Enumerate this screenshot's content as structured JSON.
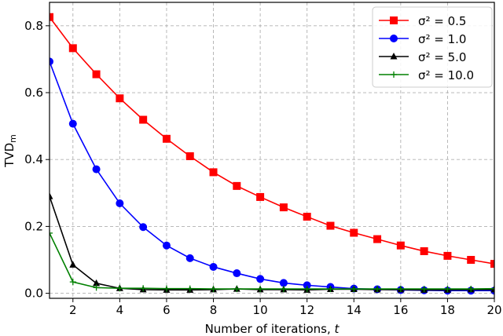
{
  "chart_data": {
    "type": "line",
    "title": "",
    "xlabel": "Number of iterations, t",
    "ylabel": "TVD_m",
    "xlim": [
      1,
      20
    ],
    "ylim": [
      -0.015,
      0.87
    ],
    "grid": true,
    "legend_position": "upper right",
    "x": [
      1,
      2,
      3,
      4,
      5,
      6,
      7,
      8,
      9,
      10,
      11,
      12,
      13,
      14,
      15,
      16,
      17,
      18,
      19,
      20
    ],
    "x_ticks": [
      2,
      4,
      6,
      8,
      10,
      12,
      14,
      16,
      18,
      20
    ],
    "y_ticks": [
      0.0,
      0.2,
      0.4,
      0.6,
      0.8
    ],
    "series": [
      {
        "name": "σ² = 0.5",
        "color": "#ff0000",
        "marker": "square",
        "values": [
          0.826,
          0.733,
          0.655,
          0.583,
          0.519,
          0.462,
          0.41,
          0.362,
          0.321,
          0.288,
          0.257,
          0.229,
          0.202,
          0.181,
          0.162,
          0.143,
          0.126,
          0.112,
          0.1,
          0.088
        ]
      },
      {
        "name": "σ² = 1.0",
        "color": "#0000ff",
        "marker": "circle",
        "values": [
          0.693,
          0.507,
          0.371,
          0.269,
          0.198,
          0.143,
          0.105,
          0.079,
          0.06,
          0.043,
          0.031,
          0.024,
          0.019,
          0.014,
          0.012,
          0.01,
          0.009,
          0.008,
          0.008,
          0.008
        ]
      },
      {
        "name": "σ² = 5.0",
        "color": "#000000",
        "marker": "triangle",
        "values": [
          0.29,
          0.085,
          0.03,
          0.015,
          0.011,
          0.01,
          0.01,
          0.011,
          0.013,
          0.011,
          0.011,
          0.01,
          0.012,
          0.012,
          0.011,
          0.011,
          0.01,
          0.01,
          0.011,
          0.011
        ]
      },
      {
        "name": "σ² = 10.0",
        "color": "#008000",
        "marker": "plus",
        "values": [
          0.18,
          0.034,
          0.017,
          0.015,
          0.015,
          0.014,
          0.014,
          0.013,
          0.013,
          0.013,
          0.013,
          0.013,
          0.013,
          0.013,
          0.013,
          0.013,
          0.013,
          0.013,
          0.013,
          0.014
        ]
      }
    ]
  },
  "labels": {
    "xlabel_text": "Number of iterations, ",
    "xlabel_var": "t",
    "ylabel_main": "TVD",
    "ylabel_sub": "m"
  }
}
